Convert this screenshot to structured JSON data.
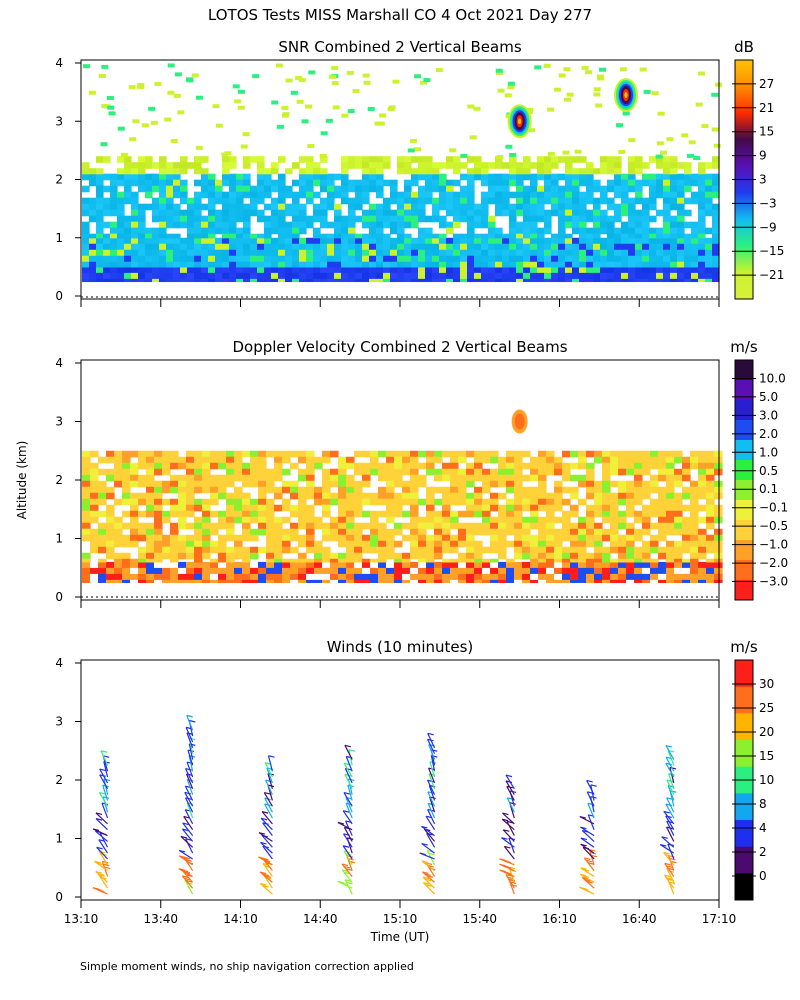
{
  "figure": {
    "title": "LOTOS Tests MISS Marshall CO   4 Oct 2021 Day 277",
    "ylabel": "Altitude (km)",
    "xlabel": "Time (UT)",
    "footnote": "Simple moment winds, no ship navigation correction applied"
  },
  "chart_data": [
    {
      "type": "heatmap",
      "title": "SNR Combined 2 Vertical Beams",
      "units": "dB",
      "ylim": [
        0,
        4
      ],
      "yticks": [
        "0",
        "1",
        "2",
        "3",
        "4"
      ],
      "colorbar": {
        "labels": [
          "27",
          "21",
          "15",
          "9",
          "3",
          "−3",
          "−9",
          "−15",
          "−21"
        ],
        "colors": [
          "#ffc400",
          "#ff8c00",
          "#ff2a00",
          "#420a4a",
          "#5a0fb4",
          "#1f3cf0",
          "#12bdf0",
          "#2bf07f",
          "#ccf22e",
          "#d8f03a"
        ]
      },
      "field": {
        "layers": [
          {
            "alt_range": [
              0.25,
              0.5
            ],
            "dominant": "-3 dB",
            "color": "#1f3cf0"
          },
          {
            "alt_range": [
              0.5,
              1.0
            ],
            "dominant": "-9 dB",
            "color": "#12bdf0"
          },
          {
            "alt_range": [
              1.0,
              2.1
            ],
            "dominant": "-15 to -3 dB",
            "color": "#12bdf0"
          },
          {
            "alt_range": [
              2.1,
              2.4
            ],
            "dominant": "-21 dB",
            "color": "#ccf22e"
          }
        ],
        "features": [
          {
            "time": "15:55",
            "alt_km": 3.0,
            "peak": "15 dB"
          },
          {
            "time": "16:35",
            "alt_km": 3.45,
            "peak": "3 dB"
          }
        ]
      }
    },
    {
      "type": "heatmap",
      "title": "Doppler Velocity Combined 2 Vertical Beams",
      "units": "m/s",
      "ylim": [
        0,
        4
      ],
      "yticks": [
        "0",
        "1",
        "2",
        "3",
        "4"
      ],
      "colorbar": {
        "labels": [
          "10.0",
          "5.0",
          "3.0",
          "2.0",
          "1.0",
          "0.5",
          "0.1",
          "−0.1",
          "−0.5",
          "−1.0",
          "−2.0",
          "−3.0"
        ],
        "colors": [
          "#2a0a3a",
          "#5a0fb4",
          "#2a1fd0",
          "#1f4cf0",
          "#12bdf0",
          "#2bf03c",
          "#8cf02e",
          "#f0f03a",
          "#ffd23a",
          "#ffa028",
          "#ff6e1a",
          "#ff1f1a"
        ]
      },
      "field": {
        "layers": [
          {
            "alt_range": [
              0.25,
              0.6
            ],
            "dominant": "-0.5 to -3.0 m/s (mixed)",
            "color": "#ffa028"
          },
          {
            "alt_range": [
              0.6,
              2.5
            ],
            "dominant": "-0.1 to -1.0 m/s",
            "color": "#ffd23a"
          }
        ],
        "features": [
          {
            "time": "15:55",
            "alt_km": 3.0,
            "value": "-1.0 m/s"
          }
        ]
      }
    },
    {
      "type": "wind_barbs",
      "title": "Winds (10 minutes)",
      "units": "m/s",
      "ylim": [
        0,
        4
      ],
      "yticks": [
        "0",
        "1",
        "2",
        "3",
        "4"
      ],
      "xticks": [
        "13:10",
        "13:40",
        "14:10",
        "14:40",
        "15:10",
        "15:40",
        "16:10",
        "16:40",
        "17:10"
      ],
      "colorbar": {
        "labels": [
          "30",
          "25",
          "20",
          "15",
          "10",
          "8",
          "4",
          "2",
          "0"
        ],
        "colors": [
          "#ff1f1a",
          "#ff6e1a",
          "#ffb400",
          "#8cf02e",
          "#2bf07f",
          "#12a8f0",
          "#1f2ff0",
          "#4a0a6e",
          "#000000"
        ]
      },
      "profiles": [
        {
          "time": "13:20",
          "top_km": 2.35
        },
        {
          "time": "13:52",
          "top_km": 2.9
        },
        {
          "time": "14:22",
          "top_km": 2.25
        },
        {
          "time": "14:52",
          "top_km": 2.4
        },
        {
          "time": "15:23",
          "top_km": 2.65
        },
        {
          "time": "15:53",
          "top_km": 1.9
        },
        {
          "time": "16:23",
          "top_km": 1.85
        },
        {
          "time": "16:53",
          "top_km": 2.4
        }
      ]
    }
  ]
}
